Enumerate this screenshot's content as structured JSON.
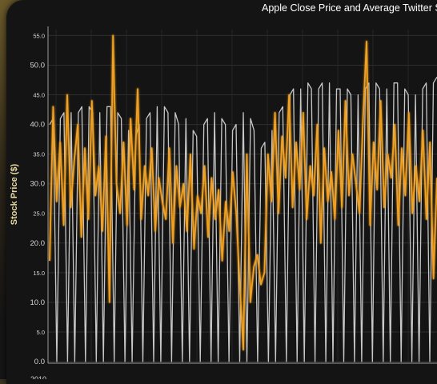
{
  "chart_data": {
    "type": "line",
    "title": "Apple Close Price and Average Twitter S",
    "ylabel": "Stock Price ($)",
    "xlabel": "",
    "ylim": [
      0,
      56
    ],
    "yticks": [
      {
        "value": 0,
        "label": "0.0"
      },
      {
        "value": 5,
        "label": "5.0"
      },
      {
        "value": 10,
        "label": "10.0"
      },
      {
        "value": 15,
        "label": "15.0"
      },
      {
        "value": 20,
        "label": "20.0"
      },
      {
        "value": 25,
        "label": "25.0"
      },
      {
        "value": 30,
        "label": "30.0"
      },
      {
        "value": 35,
        "label": "35.0"
      },
      {
        "value": 40,
        "label": "40.0"
      },
      {
        "value": 45,
        "label": "45.0"
      },
      {
        "value": 50,
        "label": "50.0"
      },
      {
        "value": 55,
        "label": "55.0"
      }
    ],
    "xtick_first": "2010",
    "grid": true,
    "series": [
      {
        "name": "",
        "color": "#c8c8c8",
        "values": [
          40,
          41,
          0,
          41,
          42,
          0,
          42,
          0,
          42,
          43,
          0,
          43,
          42,
          0,
          42,
          0,
          43,
          43,
          0,
          42,
          41,
          0,
          39,
          0,
          38,
          40,
          0,
          41,
          42,
          0,
          43,
          0,
          43,
          42,
          0,
          42,
          40,
          0,
          41,
          0,
          39,
          38,
          0,
          40,
          41,
          0,
          42,
          0,
          41,
          40,
          0,
          39,
          40,
          0,
          42,
          0,
          41,
          39,
          0,
          36,
          37,
          0,
          39,
          0,
          42,
          43,
          0,
          45,
          46,
          0,
          46,
          0,
          47,
          46,
          0,
          46,
          47,
          0,
          47,
          0,
          46,
          46,
          0,
          46,
          45,
          0,
          45,
          0,
          46,
          47,
          0,
          47,
          46,
          0,
          46,
          0,
          47,
          47,
          0,
          46,
          45,
          0,
          45,
          0,
          46,
          47,
          0,
          47,
          48
        ]
      },
      {
        "name": "",
        "color": "#f0a020",
        "values": [
          17,
          43,
          27,
          37,
          23,
          45,
          26,
          34,
          40,
          21,
          36,
          24,
          44,
          28,
          33,
          22,
          38,
          10,
          55,
          30,
          25,
          37,
          23,
          41,
          29,
          46,
          24,
          33,
          28,
          36,
          22,
          31,
          27,
          24,
          36,
          20,
          33,
          26,
          30,
          22,
          35,
          19,
          28,
          25,
          33,
          21,
          31,
          24,
          29,
          17,
          27,
          22,
          32,
          25,
          13,
          2,
          35,
          10,
          16,
          18,
          13,
          15,
          35,
          27,
          42,
          25,
          38,
          31,
          45,
          26,
          37,
          29,
          42,
          24,
          33,
          28,
          40,
          20,
          36,
          27,
          32,
          24,
          39,
          26,
          44,
          28,
          35,
          30,
          25,
          41,
          54,
          23,
          37,
          29,
          44,
          26,
          35,
          31,
          40,
          23,
          36,
          28,
          42,
          25,
          33,
          27,
          39,
          24,
          37,
          14,
          31
        ]
      }
    ]
  }
}
